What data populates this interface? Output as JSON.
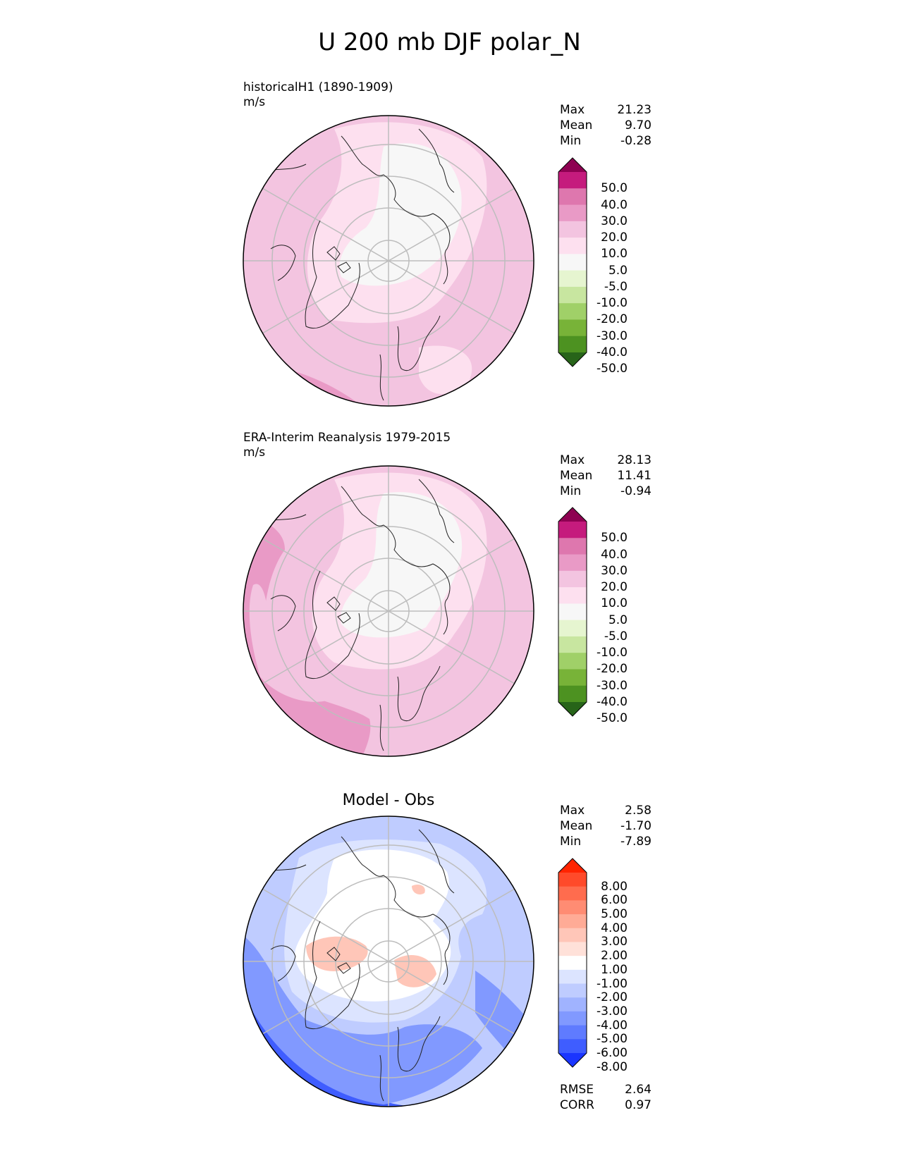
{
  "title": "U 200 mb DJF polar_N",
  "panels": [
    {
      "id": "test",
      "label": "historicalH1 (1890-1909)",
      "units": "m/s",
      "center_title": "",
      "stats": [
        {
          "name": "Max",
          "value": "21.23"
        },
        {
          "name": "Mean",
          "value": "9.70"
        },
        {
          "name": "Min",
          "value": "-0.28"
        }
      ]
    },
    {
      "id": "ref",
      "label": "ERA-Interim Reanalysis 1979-2015",
      "units": "m/s",
      "center_title": "",
      "stats": [
        {
          "name": "Max",
          "value": "28.13"
        },
        {
          "name": "Mean",
          "value": "11.41"
        },
        {
          "name": "Min",
          "value": "-0.94"
        }
      ]
    },
    {
      "id": "diff",
      "label": "",
      "units": "",
      "center_title": "Model - Obs",
      "stats": [
        {
          "name": "Max",
          "value": "2.58"
        },
        {
          "name": "Mean",
          "value": "-1.70"
        },
        {
          "name": "Min",
          "value": "-7.89"
        }
      ],
      "metrics": [
        {
          "name": "RMSE",
          "value": "2.64"
        },
        {
          "name": "CORR",
          "value": "0.97"
        }
      ]
    }
  ],
  "colorbars": {
    "field": {
      "ticks": [
        "50.0",
        "40.0",
        "30.0",
        "20.0",
        "10.0",
        "5.0",
        "-5.0",
        "-10.0",
        "-20.0",
        "-30.0",
        "-40.0",
        "-50.0"
      ],
      "colors_top_to_bottom": [
        "#8e0152",
        "#c51b7d",
        "#de77ae",
        "#e99ac6",
        "#f3c4e0",
        "#fde0ef",
        "#f7f7f7",
        "#e6f5d0",
        "#c8e6a0",
        "#a0d068",
        "#78b338",
        "#4d9221",
        "#276419"
      ]
    },
    "diff": {
      "ticks": [
        "8.00",
        "6.00",
        "5.00",
        "4.00",
        "3.00",
        "2.00",
        "1.00",
        "-1.00",
        "-2.00",
        "-3.00",
        "-4.00",
        "-5.00",
        "-6.00",
        "-8.00"
      ],
      "colors_top_to_bottom": [
        "#ff2400",
        "#ff4a2a",
        "#ff6c4e",
        "#ff8c73",
        "#ffab96",
        "#ffc6b8",
        "#ffe1d9",
        "#ffffff",
        "#dce4ff",
        "#bfccff",
        "#a0b3ff",
        "#8199ff",
        "#5f7bff",
        "#3f5dff",
        "#1a35ff"
      ]
    }
  },
  "map_colors": {
    "field_bg": "#f3c4e0",
    "field_light": "#fde0ef",
    "field_white": "#f7f7f7",
    "field_mid": "#e99ac6",
    "diff_white": "#ffffff",
    "diff_blue1": "#dce4ff",
    "diff_blue2": "#bfccff",
    "diff_blue3": "#8199ff",
    "diff_blue4": "#3f5dff",
    "diff_red": "#ffc6b8"
  }
}
